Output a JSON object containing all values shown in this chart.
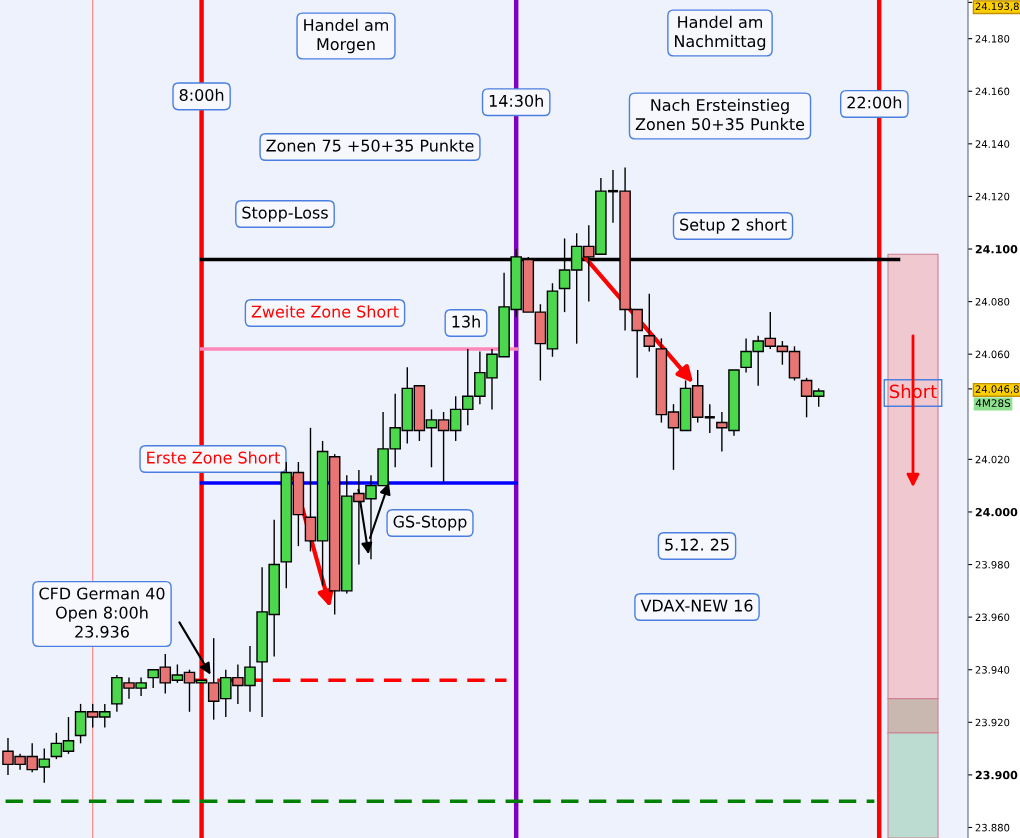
{
  "chart_data": {
    "type": "candlestick",
    "x": [
      4.0,
      4.25,
      4.5,
      4.75,
      5.0,
      5.25,
      5.5,
      5.75,
      6.0,
      6.25,
      6.5,
      6.75,
      7.0,
      7.25,
      7.5,
      7.75,
      8.0,
      8.25,
      8.5,
      8.75,
      9.0,
      9.25,
      9.5,
      9.75,
      10.0,
      10.25,
      10.5,
      10.75,
      11.0,
      11.25,
      11.5,
      11.75,
      12.0,
      12.25,
      12.5,
      12.75,
      13.0,
      13.25,
      13.5,
      13.75,
      14.0,
      14.25,
      14.5,
      14.75,
      15.0,
      15.25,
      15.5,
      15.75,
      16.0,
      16.25,
      16.5,
      16.75,
      17.0,
      17.25,
      17.5,
      17.75,
      18.0,
      18.25,
      18.5,
      18.75,
      19.0,
      19.25,
      19.5,
      19.75,
      20.0,
      20.25,
      20.5,
      20.75
    ],
    "ohlc": [
      [
        23909,
        23914,
        23900,
        23904
      ],
      [
        23907,
        23908,
        23902,
        23904
      ],
      [
        23907,
        23912,
        23901,
        23902
      ],
      [
        23903,
        23910,
        23897,
        23906
      ],
      [
        23907,
        23916,
        23906,
        23912
      ],
      [
        23909,
        23922,
        23908,
        23913
      ],
      [
        23915,
        23927,
        23912,
        23924
      ],
      [
        23924,
        23927,
        23918,
        23922
      ],
      [
        23922,
        23927,
        23918,
        23924
      ],
      [
        23927,
        23938,
        23924,
        23937
      ],
      [
        23935,
        23937,
        23929,
        23933
      ],
      [
        23933,
        23937,
        23930,
        23935
      ],
      [
        23937,
        23940,
        23933,
        23940
      ],
      [
        23941,
        23946,
        23931,
        23935
      ],
      [
        23936,
        23942,
        23935,
        23938
      ],
      [
        23939,
        23940,
        23924,
        23935
      ],
      [
        23935,
        23936,
        23935,
        23936
      ],
      [
        23935,
        23952,
        23921,
        23928
      ],
      [
        23929,
        23940,
        23922,
        23937
      ],
      [
        23937,
        23942,
        23927,
        23934
      ],
      [
        23934,
        23949,
        23924,
        23941
      ],
      [
        23943,
        23979,
        23922,
        23962
      ],
      [
        23961,
        23997,
        23945,
        23980
      ],
      [
        23981,
        24019,
        23971,
        24015
      ],
      [
        24015,
        24019,
        23987,
        23999
      ],
      [
        23998,
        24032,
        23985,
        23989
      ],
      [
        23989,
        24027,
        23972,
        24023
      ],
      [
        24021,
        24022,
        23961,
        23970
      ],
      [
        23970,
        24014,
        23969,
        24006
      ],
      [
        24007,
        24016,
        23980,
        24004
      ],
      [
        24005,
        24014,
        23982,
        24010
      ],
      [
        24010,
        24038,
        24010,
        24024
      ],
      [
        24024,
        24045,
        24017,
        24032
      ],
      [
        24031,
        24055,
        24026,
        24047
      ],
      [
        24048,
        24048,
        24027,
        24031
      ],
      [
        24032,
        24039,
        24017,
        24035
      ],
      [
        24035,
        24038,
        24011,
        24031
      ],
      [
        24031,
        24044,
        24027,
        24039
      ],
      [
        24039,
        24062,
        24033,
        24044
      ],
      [
        24044,
        24061,
        24041,
        24053
      ],
      [
        24051,
        24062,
        24039,
        24060
      ],
      [
        24059,
        24091,
        24059,
        24078
      ],
      [
        24077,
        24100,
        24074,
        24097
      ],
      [
        24096,
        24097,
        24076,
        24076
      ],
      [
        24076,
        24079,
        24050,
        24064
      ],
      [
        24062,
        24087,
        24059,
        24084
      ],
      [
        24085,
        24104,
        24076,
        24092
      ],
      [
        24092,
        24106,
        24064,
        24101
      ],
      [
        24101,
        24109,
        24080,
        24097
      ],
      [
        24098,
        24127,
        24098,
        24122
      ],
      [
        24122,
        24130,
        24110,
        24122
      ],
      [
        24122,
        24131,
        24069,
        24077
      ],
      [
        24077,
        24077,
        24051,
        24069
      ],
      [
        24067,
        24083,
        24061,
        24063
      ],
      [
        24062,
        24066,
        24034,
        24037
      ],
      [
        24038,
        24041,
        24016,
        24032
      ],
      [
        24031,
        24050,
        24031,
        24047
      ],
      [
        24048,
        24054,
        24034,
        24036
      ],
      [
        24036,
        24041,
        24030,
        24036
      ],
      [
        24034,
        24038,
        24023,
        24032
      ],
      [
        24031,
        24054,
        24029,
        24054
      ],
      [
        24055,
        24066,
        24053,
        24061
      ],
      [
        24061,
        24067,
        24048,
        24065
      ],
      [
        24066,
        24076,
        24062,
        24063
      ],
      [
        24063,
        24065,
        24056,
        24061
      ],
      [
        24061,
        24063,
        24050,
        24051
      ],
      [
        24050,
        24051,
        24036,
        24044
      ],
      [
        24044,
        24047,
        24040,
        24046
      ]
    ],
    "colors": [
      "#e87474",
      "#e87474",
      "#e87474",
      "#4cd84c",
      "#4cd84c",
      "#4cd84c",
      "#4cd84c",
      "#e87474",
      "#4cd84c",
      "#4cd84c",
      "#e87474",
      "#4cd84c",
      "#4cd84c",
      "#e87474",
      "#4cd84c",
      "#e87474",
      "#4cd84c",
      "#e87474",
      "#4cd84c",
      "#e87474",
      "#4cd84c",
      "#4cd84c",
      "#4cd84c",
      "#4cd84c",
      "#e87474",
      "#e87474",
      "#4cd84c",
      "#e87474",
      "#4cd84c",
      "#e87474",
      "#4cd84c",
      "#4cd84c",
      "#4cd84c",
      "#4cd84c",
      "#e87474",
      "#4cd84c",
      "#e87474",
      "#4cd84c",
      "#4cd84c",
      "#4cd84c",
      "#4cd84c",
      "#4cd84c",
      "#4cd84c",
      "#e87474",
      "#e87474",
      "#4cd84c",
      "#4cd84c",
      "#4cd84c",
      "#e87474",
      "#4cd84c",
      "#000000",
      "#e87474",
      "#e87474",
      "#e87474",
      "#e87474",
      "#e87474",
      "#4cd84c",
      "#e87474",
      "#000000",
      "#e87474",
      "#4cd84c",
      "#4cd84c",
      "#4cd84c",
      "#e87474",
      "#e87474",
      "#e87474",
      "#e87474",
      "#4cd84c"
    ],
    "series": [
      {
        "type": "line",
        "x": [
          8.0,
          22.4
        ],
        "values": [
          24096,
          24096
        ],
        "color": "#000000",
        "line_style": "solid"
      },
      {
        "type": "line",
        "x": [
          8.0,
          14.5
        ],
        "values": [
          24062,
          24062
        ],
        "color": "#ff88bb",
        "line_style": "solid"
      },
      {
        "type": "line",
        "x": [
          8.0,
          14.5
        ],
        "values": [
          24011,
          24011
        ],
        "color": "#0000ff",
        "line_style": "solid"
      },
      {
        "type": "line",
        "x": [
          7.75,
          14.3
        ],
        "values": [
          23936,
          23936
        ],
        "color": "#ff0000",
        "line_style": "dashed"
      },
      {
        "type": "line",
        "x": [
          3.95,
          21.9
        ],
        "values": [
          23890,
          23890
        ],
        "color": "#008000",
        "line_style": "dashed"
      }
    ],
    "ref_lines": [
      {
        "axis": "x",
        "value": 5.75,
        "label": null,
        "color": "#ff8080"
      },
      {
        "axis": "x",
        "value": 8.0,
        "label": "8:00h",
        "color": "#ff0000"
      },
      {
        "axis": "x",
        "value": 14.5,
        "label": "14:30h",
        "color": "#8000c0"
      },
      {
        "axis": "x",
        "value": 22.0,
        "label": "22:00h",
        "color": "#ff0000"
      }
    ],
    "bands": [
      {
        "axis": "y",
        "from": 23929,
        "to": 24098,
        "label": "Short",
        "color": "#f0c8d0"
      },
      {
        "axis": "y",
        "from": 23916,
        "to": 23929,
        "label": null,
        "color": "#c8b8b0"
      },
      {
        "axis": "y",
        "from": 23876,
        "to": 23916,
        "label": null,
        "color": "#bcdcd2"
      }
    ],
    "annotations": [
      "Handel am\nMorgen",
      "Handel am\nNachmittag",
      "Zonen 75 +50+35 Punkte",
      "Nach Ersteinstieg\nZonen 50+35 Punkte",
      "Stopp-Loss",
      "Setup 2 short",
      "Zweite Zone Short",
      "13h",
      "Erste Zone Short",
      {
        "text": "GS-Stopp",
        "x": 11.87,
        "y": 24011
      },
      "CFD German 40\nOpen 8:00h\n23.936",
      "5.12. 25",
      "VDAX-NEW 16",
      "4M28S"
    ],
    "xlim": [
      3.835,
      23.835
    ],
    "ylim": [
      23876,
      24194.7
    ],
    "yticks": [
      {
        "value": 23880,
        "label": "23.880"
      },
      {
        "value": 23900,
        "label": "23.900"
      },
      {
        "value": 23920,
        "label": "23.920"
      },
      {
        "value": 23940,
        "label": "23.940"
      },
      {
        "value": 23960,
        "label": "23.960"
      },
      {
        "value": 23980,
        "label": "23.980"
      },
      {
        "value": 24000,
        "label": "24.000"
      },
      {
        "value": 24020,
        "label": "24.020"
      },
      {
        "value": 24046.8,
        "label": "24.046,8"
      },
      {
        "value": 24060,
        "label": "24.060"
      },
      {
        "value": 24080,
        "label": "24.080"
      },
      {
        "value": 24100,
        "label": "24.100"
      },
      {
        "value": 24120,
        "label": "24.120"
      },
      {
        "value": 24140,
        "label": "24.140"
      },
      {
        "value": 24160,
        "label": "24.160"
      },
      {
        "value": 24180,
        "label": "24.180"
      },
      {
        "value": 24193.8,
        "label": "24.193,8"
      }
    ],
    "tick_labels": "y",
    "grid": false,
    "legend": false
  }
}
